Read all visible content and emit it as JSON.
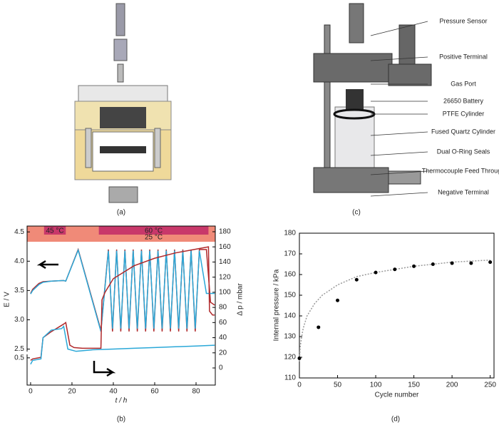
{
  "panel_labels": [
    "(a)",
    "(b)",
    "(c)",
    "(d)"
  ],
  "diagram_c": {
    "callouts": [
      "Pressure Sensor",
      "Positive Terminal",
      "Gas Port",
      "26650 Battery",
      "PTFE Cylinder",
      "Fused Quartz Cylinder",
      "Dual O-Ring Seals",
      "Thermocouple Feed Through",
      "Negative Terminal"
    ]
  },
  "chart_data": [
    {
      "type": "line",
      "xlabel": "t / h",
      "ylabel": "E / V",
      "y2label": "Δ p / mbar",
      "xlim": [
        -1.7,
        89.3
      ],
      "xticks": [
        0,
        20,
        40,
        60,
        80
      ],
      "ylim": [
        2.47,
        4.6
      ],
      "yticks": [
        2.5,
        {
          "value": 3,
          "label": "3.0"
        },
        3.5,
        {
          "value": 4,
          "label": "4.0"
        },
        4.5
      ],
      "ylim_lower": [
        0,
        0.55
      ],
      "yticks_lower": [
        0.5
      ],
      "y2lim": [
        -22.6,
        187.5
      ],
      "y2ticks": [
        0,
        20,
        40,
        60,
        80,
        100,
        120,
        140,
        160,
        180
      ],
      "bands": [
        {
          "label": "45 °C",
          "x": [
            6.5,
            17
          ],
          "color": "#c8386a"
        },
        {
          "label": "60 °C",
          "x": [
            33,
            86
          ],
          "color": "#c8386a"
        }
      ],
      "band_color": "#f08a78",
      "band_note": "25 °C",
      "series": [
        {
          "color": "#b0282a",
          "x": [
            0,
            1,
            4,
            6,
            10,
            16,
            17,
            23,
            34,
            37.6,
            39.6,
            41.6,
            43.6,
            45.6,
            47.6,
            49.6,
            51.6,
            53.6,
            55.6,
            57.6,
            59.6,
            61.6,
            63.6,
            65.6,
            67.6,
            69.6,
            71.6,
            73.6,
            75.6,
            77.6,
            79.6,
            81.6,
            85,
            87,
            89
          ],
          "values": [
            3.45,
            3.52,
            3.62,
            3.65,
            3.66,
            3.67,
            3.66,
            4.2,
            2.82,
            4.2,
            2.8,
            4.2,
            2.8,
            4.2,
            2.8,
            4.2,
            2.8,
            4.2,
            2.8,
            4.2,
            2.8,
            4.2,
            2.8,
            4.2,
            2.8,
            4.2,
            2.8,
            4.2,
            2.8,
            4.2,
            2.8,
            4.2,
            4.2,
            3.3,
            3.25
          ]
        },
        {
          "color": "#2aa8d8",
          "x": [
            0,
            1,
            4,
            6,
            10,
            16,
            17,
            23,
            34,
            37.6,
            39.6,
            41.6,
            43.6,
            45.6,
            47.6,
            49.6,
            51.6,
            53.6,
            55.6,
            57.6,
            59.6,
            61.6,
            63.6,
            65.6,
            67.6,
            69.6,
            71.6,
            73.6,
            75.6,
            77.6,
            79.6,
            81.6,
            85,
            87,
            89
          ],
          "values": [
            3.44,
            3.5,
            3.6,
            3.64,
            3.66,
            3.67,
            3.66,
            4.19,
            2.8,
            4.18,
            2.85,
            4.18,
            2.85,
            4.18,
            2.85,
            4.18,
            2.85,
            4.18,
            2.85,
            4.18,
            2.85,
            4.18,
            2.85,
            4.18,
            2.85,
            4.18,
            2.85,
            4.18,
            2.85,
            4.18,
            2.85,
            4.18,
            3.45,
            3.45,
            3.45
          ]
        },
        {
          "color": "#b0282a",
          "axis": "y2",
          "x": [
            0,
            1,
            5,
            6,
            10,
            16,
            17,
            19,
            21,
            25,
            34,
            34.5,
            36,
            40,
            50,
            60,
            70,
            80,
            86,
            86.5,
            88,
            89
          ],
          "values": [
            10,
            12,
            14,
            40,
            48,
            58,
            60,
            30,
            27,
            26,
            26,
            90,
            100,
            118,
            135,
            145,
            152,
            157,
            160,
            75,
            70,
            70
          ]
        },
        {
          "color": "#2aa8d8",
          "axis": "y2",
          "x": [
            0,
            1,
            5,
            6,
            10,
            15,
            16,
            18,
            22,
            30,
            40,
            50,
            60,
            70,
            80,
            89
          ],
          "values": [
            5,
            10,
            12,
            40,
            50,
            52,
            55,
            25,
            22,
            24,
            25,
            26,
            27,
            28,
            29,
            30
          ]
        }
      ]
    },
    {
      "type": "scatter",
      "xlabel": "Cycle number",
      "ylabel": "Internal pressure / kPa",
      "xlim": [
        0,
        255
      ],
      "xticks": [
        0,
        50,
        100,
        150,
        200,
        250
      ],
      "ylim": [
        110,
        180
      ],
      "yticks": [
        110,
        120,
        130,
        140,
        150,
        160,
        170,
        180
      ],
      "x": [
        0,
        25,
        50,
        75,
        100,
        125,
        150,
        175,
        200,
        225,
        250
      ],
      "values": [
        119.5,
        134.5,
        147.5,
        157.5,
        161,
        162.5,
        164,
        165,
        165.5,
        165.5,
        166
      ],
      "color": "#000000",
      "fit": {
        "color": "#999999",
        "x": [
          0,
          1,
          3,
          5,
          10,
          20,
          30,
          50,
          75,
          100,
          150,
          200,
          250
        ],
        "values": [
          118,
          125,
          130,
          134,
          140,
          146,
          150,
          155,
          159,
          161,
          164,
          166,
          167
        ]
      }
    }
  ]
}
